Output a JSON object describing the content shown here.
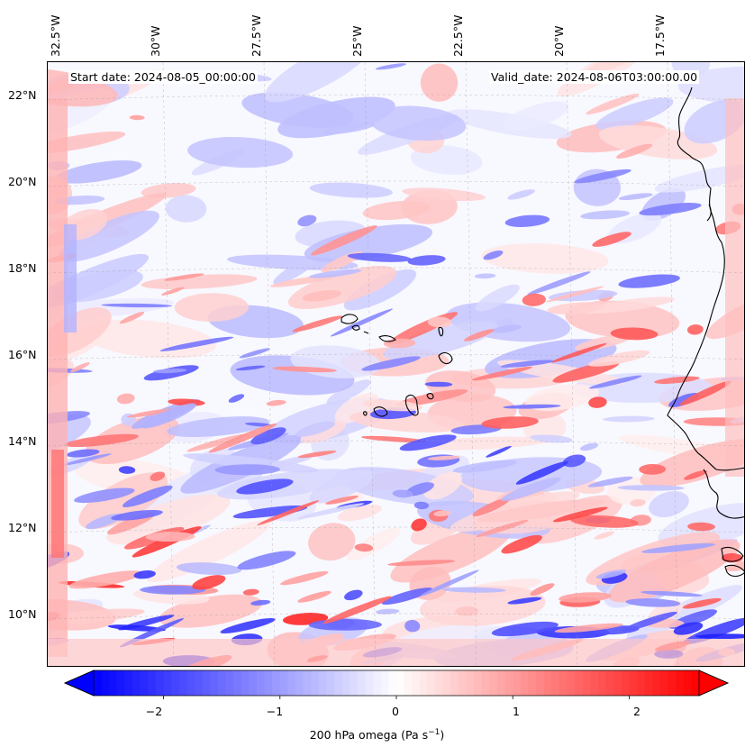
{
  "header": {
    "start_label": "Start date: 2024-08-05_00:00:00",
    "valid_label": "Valid_date: 2024-08-06T03:00:00.00"
  },
  "axes": {
    "lon_labels": [
      "32.5°W",
      "30°W",
      "27.5°W",
      "25°W",
      "22.5°W",
      "20°W",
      "17.5°W"
    ],
    "lat_labels": [
      "22°N",
      "20°N",
      "18°N",
      "16°N",
      "14°N",
      "12°N",
      "10°N"
    ]
  },
  "colorbar": {
    "tick_labels": [
      "−2",
      "−1",
      "0",
      "1",
      "2"
    ],
    "tick_values": [
      -2,
      -1,
      0,
      1,
      2
    ],
    "range": [
      -2.6,
      2.6
    ],
    "colormap": "bwr",
    "negative_color": "#0000ff",
    "positive_color": "#ff0000",
    "title": "200 hPa omega (Pa s",
    "title_sup": "−1",
    "title_end": ")"
  },
  "map": {
    "extent": {
      "lon": [
        -33.0,
        -16.0
      ],
      "lat": [
        8.9,
        22.8
      ]
    },
    "gridlines": "dashed",
    "coastlines": true,
    "features": [
      "cabo-verde-islands",
      "west-africa-coast"
    ]
  }
}
